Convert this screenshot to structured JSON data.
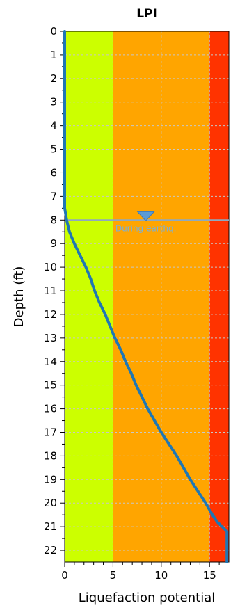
{
  "chart_data": {
    "type": "line",
    "title": "LPI",
    "xlabel": "Liquefaction potential",
    "ylabel": "Depth (ft)",
    "xlim": [
      0,
      17
    ],
    "ylim": [
      0,
      22.5
    ],
    "y_inverted": true,
    "x_ticks": [
      0,
      5,
      10,
      15
    ],
    "x_tick_labels": [
      "0",
      "5",
      "10",
      "15"
    ],
    "y_ticks": [
      0,
      1,
      2,
      3,
      4,
      5,
      6,
      7,
      8,
      9,
      10,
      11,
      12,
      13,
      14,
      15,
      16,
      17,
      18,
      19,
      20,
      21,
      22
    ],
    "y_tick_labels": [
      "0",
      "1",
      "2",
      "3",
      "4",
      "5",
      "6",
      "7",
      "8",
      "9",
      "10",
      "11",
      "12",
      "13",
      "14",
      "15",
      "16",
      "17",
      "18",
      "19",
      "20",
      "21",
      "22"
    ],
    "grid": true,
    "bands": [
      {
        "from": 0,
        "to": 5,
        "color": "#ccff00"
      },
      {
        "from": 5,
        "to": 15,
        "color": "#ffa500"
      },
      {
        "from": 15,
        "to": 17,
        "color": "#ff3300"
      }
    ],
    "series": [
      {
        "color": "#1f77b4",
        "x": [
          0.0,
          0.0,
          0.2,
          0.5,
          1.0,
          1.6,
          2.2,
          2.7,
          3.1,
          3.6,
          4.2,
          4.7,
          5.2,
          5.8,
          6.3,
          6.9,
          7.4,
          8.0,
          8.6,
          9.3,
          10.0,
          10.8,
          11.6,
          12.3,
          13.0,
          13.8,
          14.6,
          15.3,
          15.8,
          16.3,
          16.8,
          16.8
        ],
        "y": [
          0,
          7.5,
          8.0,
          8.5,
          9.0,
          9.5,
          10.0,
          10.5,
          11.0,
          11.5,
          12.0,
          12.5,
          13.0,
          13.5,
          14.0,
          14.5,
          15.0,
          15.5,
          16.0,
          16.5,
          17.0,
          17.5,
          18.0,
          18.5,
          19.0,
          19.5,
          20.0,
          20.5,
          20.8,
          21.0,
          21.2,
          22.5
        ]
      }
    ],
    "annotations": [
      {
        "text": "During earthq.",
        "depth": 8.0,
        "x": 8.4,
        "color": "#7bb0d8",
        "marker": "down-triangle"
      }
    ]
  }
}
